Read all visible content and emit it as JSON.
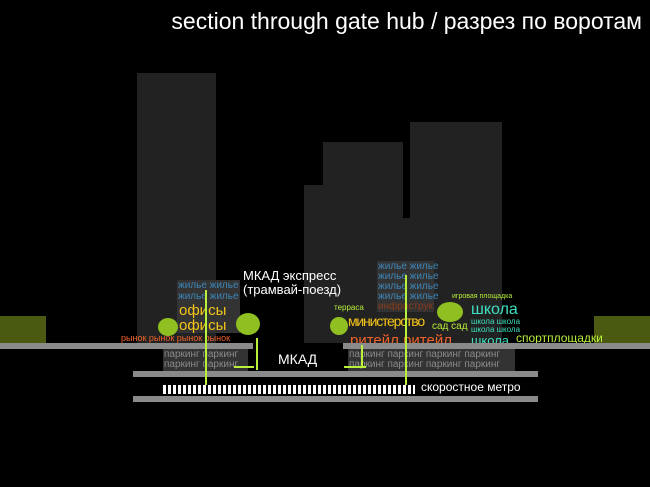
{
  "title": "section through gate hub / разрез по воротам",
  "labels": {
    "housing": "жилье жилье",
    "offices": "офисы",
    "market": "рынок рынок рынок рынок",
    "mkad_express": "МКАД экспресс",
    "tram_train": "(трамвай-поезд)",
    "mkad": "МКАД",
    "parking2": "паркинг паркинг",
    "parking4": "паркинг паркинг паркинг паркинг",
    "metro": "скоростное метро",
    "terrace": "терраса",
    "infrastructure": "инфраструктура",
    "ministry": "министерство",
    "retail": "ритейл ритейл",
    "garden": "сад сад",
    "playground": "игровая площадка",
    "school": "школа",
    "school2": "школа школа",
    "sports": "спортплощадки"
  },
  "colors": {
    "housing": "#3d86b8",
    "offices": "#f5c518",
    "retail": "#f0622a",
    "school": "#3de0c0",
    "green": "#b8f03a",
    "ground": "#8a8a8a",
    "building": "#222222"
  }
}
